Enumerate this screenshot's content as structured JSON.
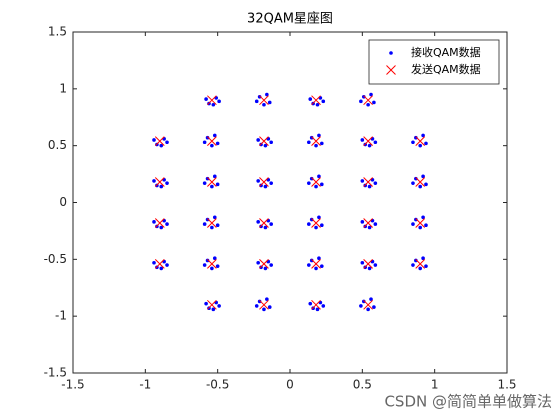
{
  "chart_data": {
    "type": "scatter",
    "title": "32QAM星座图",
    "watermark": "CSDN @简简单单做算法",
    "xlim": [
      -1.5,
      1.5
    ],
    "ylim": [
      -1.5,
      1.5
    ],
    "xticks": [
      -1.5,
      -1,
      -0.5,
      0,
      0.5,
      1,
      1.5
    ],
    "yticks": [
      -1.5,
      -1,
      -0.5,
      0,
      0.5,
      1,
      1.5
    ],
    "legend": "upper right",
    "series": [
      {
        "name": "接收QAM数据",
        "color": "#0000ff",
        "marker": "dot",
        "x": [
          -0.51,
          -0.58,
          -0.53,
          -0.56,
          -0.49,
          -0.21,
          -0.14,
          -0.16,
          -0.23,
          -0.18,
          0.21,
          0.14,
          0.19,
          0.16,
          0.23,
          0.51,
          0.58,
          0.56,
          0.49,
          0.54,
          -0.87,
          -0.94,
          -0.89,
          -0.92,
          -0.85,
          -0.57,
          -0.5,
          -0.52,
          -0.59,
          -0.54,
          -0.15,
          -0.22,
          -0.17,
          -0.2,
          -0.13,
          0.15,
          0.22,
          0.2,
          0.13,
          0.18,
          0.57,
          0.5,
          0.55,
          0.52,
          0.59,
          0.87,
          0.94,
          0.92,
          0.85,
          0.9,
          -0.87,
          -0.94,
          -0.89,
          -0.92,
          -0.85,
          -0.57,
          -0.5,
          -0.52,
          -0.59,
          -0.54,
          -0.15,
          -0.22,
          -0.17,
          -0.2,
          -0.13,
          0.15,
          0.22,
          0.2,
          0.13,
          0.18,
          0.57,
          0.5,
          0.55,
          0.52,
          0.59,
          0.87,
          0.94,
          0.92,
          0.85,
          0.9,
          -0.87,
          -0.94,
          -0.89,
          -0.92,
          -0.85,
          -0.57,
          -0.5,
          -0.52,
          -0.59,
          -0.54,
          -0.15,
          -0.22,
          -0.17,
          -0.2,
          -0.13,
          0.15,
          0.22,
          0.2,
          0.13,
          0.18,
          0.57,
          0.5,
          0.55,
          0.52,
          0.59,
          0.87,
          0.94,
          0.92,
          0.85,
          0.9,
          -0.87,
          -0.94,
          -0.89,
          -0.92,
          -0.85,
          -0.57,
          -0.5,
          -0.52,
          -0.59,
          -0.54,
          -0.15,
          -0.22,
          -0.17,
          -0.2,
          -0.13,
          0.15,
          0.22,
          0.2,
          0.13,
          0.18,
          0.57,
          0.5,
          0.55,
          0.52,
          0.59,
          0.87,
          0.94,
          0.92,
          0.85,
          0.9,
          -0.51,
          -0.58,
          -0.53,
          -0.56,
          -0.49,
          -0.21,
          -0.14,
          -0.16,
          -0.23,
          -0.18,
          0.21,
          0.14,
          0.19,
          0.16,
          0.23,
          0.51,
          0.58,
          0.56,
          0.49,
          0.54
        ],
        "values": [
          0.92,
          0.91,
          0.86,
          0.87,
          0.89,
          0.93,
          0.88,
          0.95,
          0.89,
          0.86,
          0.92,
          0.91,
          0.86,
          0.87,
          0.89,
          0.93,
          0.88,
          0.95,
          0.89,
          0.86,
          0.56,
          0.55,
          0.5,
          0.51,
          0.53,
          0.57,
          0.52,
          0.59,
          0.53,
          0.5,
          0.56,
          0.55,
          0.5,
          0.51,
          0.53,
          0.57,
          0.52,
          0.59,
          0.53,
          0.5,
          0.56,
          0.55,
          0.5,
          0.51,
          0.53,
          0.57,
          0.52,
          0.59,
          0.53,
          0.5,
          0.2,
          0.19,
          0.14,
          0.15,
          0.17,
          0.21,
          0.16,
          0.23,
          0.17,
          0.14,
          0.2,
          0.19,
          0.14,
          0.15,
          0.17,
          0.21,
          0.16,
          0.23,
          0.17,
          0.14,
          0.2,
          0.19,
          0.14,
          0.15,
          0.17,
          0.21,
          0.16,
          0.23,
          0.17,
          0.14,
          -0.16,
          -0.17,
          -0.22,
          -0.21,
          -0.19,
          -0.15,
          -0.2,
          -0.13,
          -0.19,
          -0.22,
          -0.16,
          -0.17,
          -0.22,
          -0.21,
          -0.19,
          -0.15,
          -0.2,
          -0.13,
          -0.19,
          -0.22,
          -0.16,
          -0.17,
          -0.22,
          -0.21,
          -0.19,
          -0.15,
          -0.2,
          -0.13,
          -0.19,
          -0.22,
          -0.52,
          -0.53,
          -0.58,
          -0.57,
          -0.55,
          -0.51,
          -0.56,
          -0.49,
          -0.55,
          -0.58,
          -0.52,
          -0.53,
          -0.58,
          -0.57,
          -0.55,
          -0.51,
          -0.56,
          -0.49,
          -0.55,
          -0.58,
          -0.52,
          -0.53,
          -0.58,
          -0.57,
          -0.55,
          -0.51,
          -0.56,
          -0.49,
          -0.55,
          -0.58,
          -0.88,
          -0.89,
          -0.94,
          -0.93,
          -0.91,
          -0.87,
          -0.92,
          -0.85,
          -0.91,
          -0.94,
          -0.88,
          -0.89,
          -0.94,
          -0.93,
          -0.91,
          -0.87,
          -0.92,
          -0.85,
          -0.91,
          -0.94
        ]
      },
      {
        "name": "发送QAM数据",
        "color": "#ff0000",
        "marker": "x",
        "x": [
          -0.54,
          -0.18,
          0.18,
          0.54,
          -0.9,
          -0.54,
          -0.18,
          0.18,
          0.54,
          0.9,
          -0.9,
          -0.54,
          -0.18,
          0.18,
          0.54,
          0.9,
          -0.9,
          -0.54,
          -0.18,
          0.18,
          0.54,
          0.9,
          -0.9,
          -0.54,
          -0.18,
          0.18,
          0.54,
          0.9,
          -0.54,
          -0.18,
          0.18,
          0.54
        ],
        "values": [
          0.9,
          0.9,
          0.9,
          0.9,
          0.54,
          0.54,
          0.54,
          0.54,
          0.54,
          0.54,
          0.18,
          0.18,
          0.18,
          0.18,
          0.18,
          0.18,
          -0.18,
          -0.18,
          -0.18,
          -0.18,
          -0.18,
          -0.18,
          -0.54,
          -0.54,
          -0.54,
          -0.54,
          -0.54,
          -0.54,
          -0.9,
          -0.9,
          -0.9,
          -0.9
        ]
      }
    ]
  }
}
